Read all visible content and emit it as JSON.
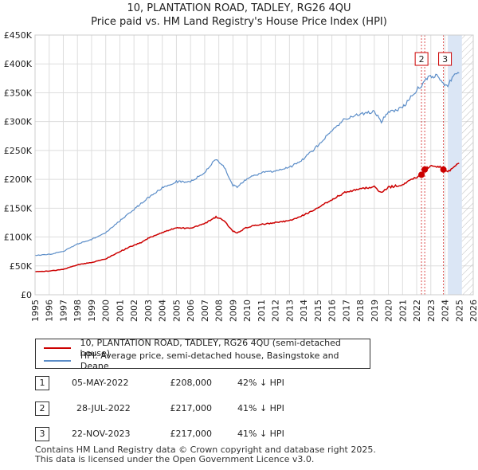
{
  "chart_data": {
    "type": "line",
    "title": "10, PLANTATION ROAD, TADLEY, RG26 4QU",
    "subtitle": "Price paid vs. HM Land Registry's House Price Index (HPI)",
    "ylim": [
      0,
      450000
    ],
    "xlim": [
      1995,
      2026
    ],
    "y_ticks": [
      {
        "value": 0,
        "label": "£0"
      },
      {
        "value": 50000,
        "label": "£50K"
      },
      {
        "value": 100000,
        "label": "£100K"
      },
      {
        "value": 150000,
        "label": "£150K"
      },
      {
        "value": 200000,
        "label": "£200K"
      },
      {
        "value": 250000,
        "label": "£250K"
      },
      {
        "value": 300000,
        "label": "£300K"
      },
      {
        "value": 350000,
        "label": "£350K"
      },
      {
        "value": 400000,
        "label": "£400K"
      },
      {
        "value": 450000,
        "label": "£450K"
      }
    ],
    "x_ticks": [
      "1995",
      "1996",
      "1997",
      "1998",
      "1999",
      "2000",
      "2001",
      "2002",
      "2003",
      "2004",
      "2005",
      "2006",
      "2007",
      "2008",
      "2009",
      "2010",
      "2011",
      "2012",
      "2013",
      "2014",
      "2015",
      "2016",
      "2017",
      "2018",
      "2019",
      "2020",
      "2021",
      "2022",
      "2023",
      "2024",
      "2025",
      "2026"
    ],
    "series": [
      {
        "name": "10, PLANTATION ROAD, TADLEY, RG26 4QU (semi-detached house)",
        "color": "#cc0000",
        "x": [
          1995.0,
          1996.0,
          1997.0,
          1998.0,
          1999.0,
          2000.0,
          2001.0,
          2002.0,
          2002.5,
          2003.0,
          2004.0,
          2005.0,
          2006.0,
          2007.0,
          2007.8,
          2008.3,
          2009.0,
          2009.3,
          2010.0,
          2011.0,
          2012.0,
          2013.0,
          2014.0,
          2015.0,
          2016.0,
          2017.0,
          2018.0,
          2019.0,
          2019.5,
          2020.0,
          2021.0,
          2022.0,
          2022.35,
          2022.57,
          2022.9,
          2023.2,
          2023.5,
          2023.89,
          2024.2,
          2024.6,
          2025.0
        ],
        "y": [
          40000,
          41000,
          44000,
          52000,
          56000,
          62000,
          75000,
          86000,
          90000,
          98000,
          108000,
          116000,
          115000,
          123000,
          135000,
          130000,
          110000,
          107000,
          117000,
          122000,
          125000,
          128000,
          138000,
          150000,
          165000,
          178000,
          183000,
          187000,
          176000,
          186000,
          191000,
          204000,
          208000,
          217000,
          222000,
          222000,
          223000,
          217000,
          212000,
          222000,
          228000
        ]
      },
      {
        "name": "HPI: Average price, semi-detached house, Basingstoke and Deane",
        "color": "#5b8dc8",
        "x": [
          1995.0,
          1996.0,
          1997.0,
          1998.0,
          1999.0,
          2000.0,
          2001.0,
          2002.0,
          2002.5,
          2003.0,
          2004.0,
          2005.0,
          2006.0,
          2007.0,
          2007.8,
          2008.3,
          2009.0,
          2009.3,
          2010.0,
          2011.0,
          2012.0,
          2013.0,
          2014.0,
          2015.0,
          2016.0,
          2017.0,
          2018.0,
          2019.0,
          2019.5,
          2020.0,
          2021.0,
          2022.0,
          2022.35,
          2022.57,
          2022.9,
          2023.2,
          2023.5,
          2023.89,
          2024.2,
          2024.6,
          2025.0
        ],
        "y": [
          68000,
          70000,
          75000,
          88000,
          96000,
          108000,
          128000,
          148000,
          158000,
          168000,
          185000,
          196000,
          196000,
          212000,
          235000,
          225000,
          190000,
          186000,
          202000,
          211000,
          215000,
          220000,
          236000,
          258000,
          286000,
          306000,
          313000,
          318000,
          300000,
          316000,
          324000,
          355000,
          363000,
          372000,
          378000,
          378000,
          380000,
          366000,
          364000,
          378000,
          384000
        ]
      }
    ],
    "sale_markers": [
      {
        "label": "1",
        "x": 2022.34,
        "y": 208000
      },
      {
        "label": "2",
        "x": 2022.57,
        "y": 217000
      },
      {
        "label": "3",
        "x": 2023.89,
        "y": 217000
      }
    ],
    "shaded_region": {
      "from": 2024.2,
      "to": 2025.2,
      "hatched_from": 2025.2,
      "hatched_to": 2026
    }
  },
  "legend": {
    "property_label": "10, PLANTATION ROAD, TADLEY, RG26 4QU (semi-detached house)",
    "hpi_label": "HPI: Average price, semi-detached house, Basingstoke and Deane",
    "property_color": "#cc0000",
    "hpi_color": "#5b8dc8"
  },
  "sales": [
    {
      "num": "1",
      "date": "05-MAY-2022",
      "price": "£208,000",
      "hpi": "42% ↓ HPI"
    },
    {
      "num": "2",
      "date": "28-JUL-2022",
      "price": "£217,000",
      "hpi": "41% ↓ HPI"
    },
    {
      "num": "3",
      "date": "22-NOV-2023",
      "price": "£217,000",
      "hpi": "41% ↓ HPI"
    }
  ],
  "footer": {
    "line1": "Contains HM Land Registry data © Crown copyright and database right 2025.",
    "line2": "This data is licensed under the Open Government Licence v3.0."
  }
}
